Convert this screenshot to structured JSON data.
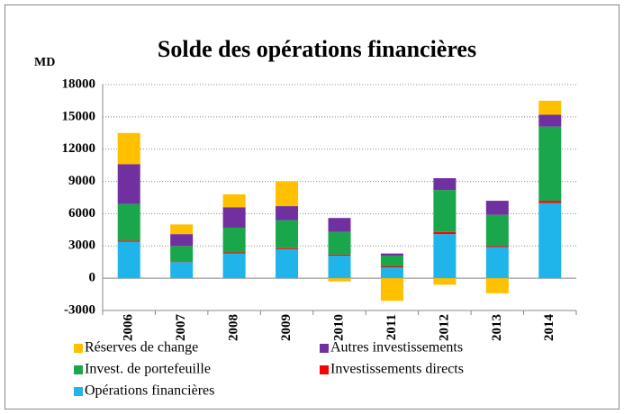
{
  "chart_data": {
    "type": "stacked_bar",
    "title": "Solde des opérations financières",
    "y_label": "MD",
    "categories": [
      "2006",
      "2007",
      "2008",
      "2009",
      "2010",
      "2011",
      "2012",
      "2013",
      "2014"
    ],
    "series": [
      {
        "name": "Opérations financières",
        "color": "#1fb4ea",
        "values": [
          3400,
          1500,
          2300,
          2700,
          2100,
          1000,
          4100,
          2900,
          7000
        ]
      },
      {
        "name": "Investissements directs",
        "color": "#ff0000",
        "values": [
          100,
          50,
          100,
          100,
          100,
          100,
          200,
          100,
          200
        ]
      },
      {
        "name": "Invest. de portefeuille",
        "color": "#1aa64b",
        "values": [
          3400,
          1450,
          2300,
          2600,
          2100,
          1000,
          3900,
          2900,
          6900
        ]
      },
      {
        "name": "Autres investissements",
        "color": "#7030a0",
        "values": [
          3700,
          1100,
          1900,
          1300,
          1300,
          200,
          1100,
          1300,
          1100
        ]
      },
      {
        "name": "Réserves de change",
        "color": "#ffc000",
        "values": [
          2900,
          900,
          1200,
          2300,
          -300,
          -2100,
          -600,
          -1400,
          1300
        ]
      }
    ],
    "ylim": [
      -3000,
      18000
    ],
    "yticks": [
      -3000,
      0,
      3000,
      6000,
      9000,
      12000,
      15000,
      18000
    ],
    "grid": true
  }
}
